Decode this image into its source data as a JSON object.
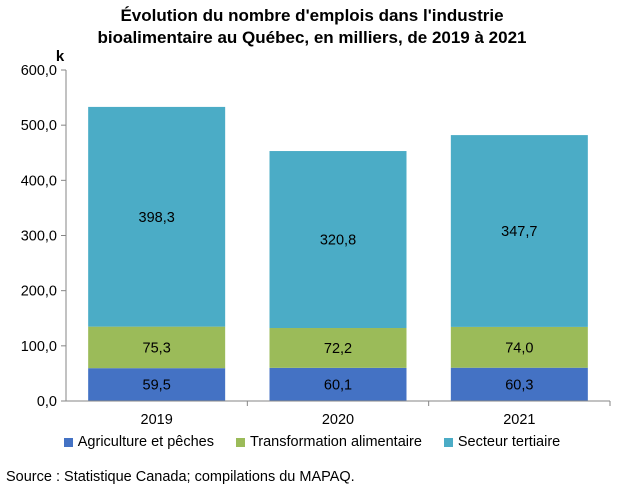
{
  "chart_data": {
    "type": "bar",
    "stacked": true,
    "title_line1": "Évolution du nombre d'emplois dans l'industrie",
    "title_line2": "bioalimentaire au Québec, en milliers, de 2019 à 2021",
    "unit_label": "k",
    "categories": [
      "2019",
      "2020",
      "2021"
    ],
    "series": [
      {
        "name": "Agriculture et pêches",
        "values": [
          59.5,
          60.1,
          60.3
        ],
        "labels": [
          "59,5",
          "60,1",
          "60,3"
        ],
        "color": "#4472c4"
      },
      {
        "name": "Transformation alimentaire",
        "values": [
          75.3,
          72.2,
          74.0
        ],
        "labels": [
          "75,3",
          "72,2",
          "74,0"
        ],
        "color": "#9bbb59"
      },
      {
        "name": "Secteur tertiaire",
        "values": [
          398.3,
          320.8,
          347.7
        ],
        "labels": [
          "398,3",
          "320,8",
          "347,7"
        ],
        "color": "#4bacc6"
      }
    ],
    "ylim": [
      0,
      600
    ],
    "yticks": [
      0,
      100,
      200,
      300,
      400,
      500,
      600
    ],
    "ytick_labels": [
      "0,0",
      "100,0",
      "200,0",
      "300,0",
      "400,0",
      "500,0",
      "600,0"
    ],
    "grid": false,
    "legend_position": "bottom"
  },
  "source": "Source : Statistique Canada; compilations du MAPAQ."
}
